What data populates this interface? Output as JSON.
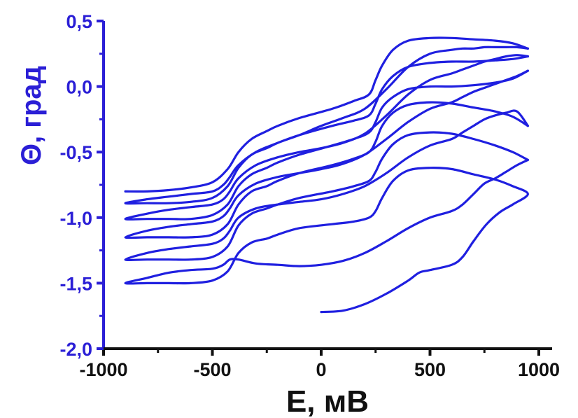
{
  "chart_data": {
    "type": "line",
    "title": "",
    "xlabel": "E, мВ",
    "ylabel": "Θ, град",
    "xlim": [
      -1000,
      1000
    ],
    "ylim": [
      -2.0,
      0.5
    ],
    "xticks": [
      -1000,
      -500,
      0,
      500,
      1000
    ],
    "xtick_labels": [
      "-1000",
      "-500",
      "0",
      "500",
      "1000"
    ],
    "yticks": [
      0.5,
      0.0,
      -0.5,
      -1.0,
      -1.5,
      -2.0
    ],
    "ytick_labels": [
      "0,5",
      "0,0",
      "-0,5",
      "-1,0",
      "-1,5",
      "-2,0"
    ],
    "grid": false,
    "legend": "none",
    "colors": {
      "series": "#1f1fe0",
      "y_axis": "#2b1fd6",
      "x_axis": "#111111"
    },
    "series": [
      {
        "points": [
          [
            0,
            -1.72
          ],
          [
            100,
            -1.71
          ],
          [
            200,
            -1.66
          ],
          [
            300,
            -1.58
          ],
          [
            400,
            -1.48
          ],
          [
            450,
            -1.42
          ],
          [
            500,
            -1.4
          ],
          [
            600,
            -1.36
          ],
          [
            650,
            -1.3
          ],
          [
            700,
            -1.18
          ],
          [
            760,
            -1.05
          ],
          [
            820,
            -0.96
          ],
          [
            880,
            -0.9
          ],
          [
            950,
            -0.82
          ],
          [
            880,
            -0.76
          ],
          [
            800,
            -0.71
          ],
          [
            700,
            -0.67
          ],
          [
            600,
            -0.63
          ],
          [
            500,
            -0.62
          ],
          [
            400,
            -0.64
          ],
          [
            330,
            -0.72
          ],
          [
            280,
            -0.85
          ],
          [
            250,
            -0.95
          ],
          [
            220,
            -1.0
          ],
          [
            150,
            -1.03
          ],
          [
            50,
            -1.05
          ],
          [
            -100,
            -1.08
          ],
          [
            -200,
            -1.13
          ],
          [
            -250,
            -1.16
          ],
          [
            -320,
            -1.19
          ],
          [
            -380,
            -1.27
          ],
          [
            -430,
            -1.41
          ],
          [
            -500,
            -1.48
          ],
          [
            -600,
            -1.5
          ],
          [
            -700,
            -1.5
          ],
          [
            -800,
            -1.5
          ],
          [
            -900,
            -1.5
          ],
          [
            -800,
            -1.46
          ],
          [
            -700,
            -1.42
          ],
          [
            -600,
            -1.4
          ],
          [
            -500,
            -1.39
          ],
          [
            -450,
            -1.36
          ],
          [
            -420,
            -1.32
          ],
          [
            -380,
            -1.32
          ],
          [
            -300,
            -1.35
          ],
          [
            -200,
            -1.36
          ],
          [
            -100,
            -1.37
          ],
          [
            0,
            -1.36
          ],
          [
            100,
            -1.33
          ],
          [
            200,
            -1.27
          ],
          [
            300,
            -1.18
          ],
          [
            400,
            -1.08
          ],
          [
            500,
            -1.0
          ],
          [
            600,
            -0.95
          ],
          [
            650,
            -0.9
          ],
          [
            700,
            -0.82
          ],
          [
            750,
            -0.74
          ],
          [
            800,
            -0.7
          ],
          [
            850,
            -0.65
          ],
          [
            900,
            -0.6
          ],
          [
            950,
            -0.56
          ]
        ]
      },
      {
        "points": [
          [
            950,
            -0.56
          ],
          [
            880,
            -0.5
          ],
          [
            800,
            -0.45
          ],
          [
            700,
            -0.4
          ],
          [
            600,
            -0.36
          ],
          [
            500,
            -0.35
          ],
          [
            400,
            -0.37
          ],
          [
            330,
            -0.44
          ],
          [
            280,
            -0.55
          ],
          [
            250,
            -0.65
          ],
          [
            220,
            -0.72
          ],
          [
            150,
            -0.76
          ],
          [
            50,
            -0.8
          ],
          [
            -100,
            -0.85
          ],
          [
            -200,
            -0.9
          ],
          [
            -250,
            -0.93
          ],
          [
            -320,
            -0.97
          ],
          [
            -380,
            -1.06
          ],
          [
            -430,
            -1.22
          ],
          [
            -500,
            -1.3
          ],
          [
            -600,
            -1.32
          ],
          [
            -700,
            -1.32
          ],
          [
            -800,
            -1.32
          ],
          [
            -900,
            -1.32
          ],
          [
            -800,
            -1.27
          ],
          [
            -700,
            -1.24
          ],
          [
            -600,
            -1.22
          ],
          [
            -500,
            -1.2
          ],
          [
            -450,
            -1.16
          ],
          [
            -420,
            -1.1
          ],
          [
            -380,
            -1.0
          ],
          [
            -300,
            -0.93
          ],
          [
            -200,
            -0.9
          ],
          [
            -100,
            -0.88
          ],
          [
            0,
            -0.86
          ],
          [
            100,
            -0.82
          ],
          [
            200,
            -0.76
          ],
          [
            300,
            -0.66
          ],
          [
            400,
            -0.54
          ],
          [
            500,
            -0.45
          ],
          [
            600,
            -0.4
          ],
          [
            650,
            -0.35
          ],
          [
            700,
            -0.3
          ],
          [
            750,
            -0.25
          ],
          [
            800,
            -0.22
          ],
          [
            850,
            -0.2
          ],
          [
            900,
            -0.19
          ],
          [
            950,
            -0.3
          ]
        ]
      },
      {
        "points": [
          [
            950,
            -0.3
          ],
          [
            880,
            -0.23
          ],
          [
            800,
            -0.19
          ],
          [
            700,
            -0.16
          ],
          [
            600,
            -0.13
          ],
          [
            500,
            -0.12
          ],
          [
            400,
            -0.14
          ],
          [
            330,
            -0.2
          ],
          [
            280,
            -0.3
          ],
          [
            250,
            -0.42
          ],
          [
            220,
            -0.5
          ],
          [
            150,
            -0.55
          ],
          [
            50,
            -0.6
          ],
          [
            -100,
            -0.66
          ],
          [
            -200,
            -0.72
          ],
          [
            -250,
            -0.76
          ],
          [
            -320,
            -0.8
          ],
          [
            -380,
            -0.9
          ],
          [
            -430,
            -1.05
          ],
          [
            -500,
            -1.13
          ],
          [
            -600,
            -1.15
          ],
          [
            -700,
            -1.15
          ],
          [
            -800,
            -1.15
          ],
          [
            -900,
            -1.15
          ],
          [
            -800,
            -1.1
          ],
          [
            -700,
            -1.07
          ],
          [
            -600,
            -1.05
          ],
          [
            -500,
            -1.03
          ],
          [
            -450,
            -0.99
          ],
          [
            -420,
            -0.93
          ],
          [
            -380,
            -0.83
          ],
          [
            -300,
            -0.74
          ],
          [
            -200,
            -0.69
          ],
          [
            -100,
            -0.66
          ],
          [
            0,
            -0.63
          ],
          [
            100,
            -0.59
          ],
          [
            200,
            -0.52
          ],
          [
            300,
            -0.4
          ],
          [
            400,
            -0.27
          ],
          [
            500,
            -0.17
          ],
          [
            600,
            -0.12
          ],
          [
            650,
            -0.08
          ],
          [
            700,
            -0.04
          ],
          [
            750,
            -0.01
          ],
          [
            800,
            0.02
          ],
          [
            850,
            0.05
          ],
          [
            900,
            0.08
          ],
          [
            950,
            0.12
          ]
        ]
      },
      {
        "points": [
          [
            950,
            0.12
          ],
          [
            880,
            0.06
          ],
          [
            800,
            0.03
          ],
          [
            700,
            0.01
          ],
          [
            600,
            0.0
          ],
          [
            500,
            0.0
          ],
          [
            400,
            -0.02
          ],
          [
            330,
            -0.08
          ],
          [
            280,
            -0.16
          ],
          [
            250,
            -0.27
          ],
          [
            220,
            -0.35
          ],
          [
            150,
            -0.4
          ],
          [
            50,
            -0.45
          ],
          [
            -100,
            -0.52
          ],
          [
            -200,
            -0.58
          ],
          [
            -250,
            -0.62
          ],
          [
            -320,
            -0.67
          ],
          [
            -380,
            -0.76
          ],
          [
            -430,
            -0.9
          ],
          [
            -500,
            -0.98
          ],
          [
            -600,
            -1.01
          ],
          [
            -700,
            -1.01
          ],
          [
            -800,
            -1.01
          ],
          [
            -900,
            -1.01
          ],
          [
            -800,
            -0.97
          ],
          [
            -700,
            -0.94
          ],
          [
            -600,
            -0.92
          ],
          [
            -500,
            -0.9
          ],
          [
            -450,
            -0.86
          ],
          [
            -420,
            -0.8
          ],
          [
            -380,
            -0.7
          ],
          [
            -300,
            -0.6
          ],
          [
            -200,
            -0.54
          ],
          [
            -100,
            -0.5
          ],
          [
            0,
            -0.47
          ],
          [
            100,
            -0.43
          ],
          [
            200,
            -0.36
          ],
          [
            300,
            -0.22
          ],
          [
            400,
            -0.06
          ],
          [
            500,
            0.05
          ],
          [
            600,
            0.1
          ],
          [
            650,
            0.13
          ],
          [
            700,
            0.16
          ],
          [
            750,
            0.19
          ],
          [
            800,
            0.21
          ],
          [
            850,
            0.23
          ],
          [
            900,
            0.24
          ],
          [
            950,
            0.23
          ]
        ]
      },
      {
        "points": [
          [
            950,
            0.23
          ],
          [
            880,
            0.21
          ],
          [
            800,
            0.2
          ],
          [
            700,
            0.19
          ],
          [
            600,
            0.19
          ],
          [
            500,
            0.18
          ],
          [
            400,
            0.15
          ],
          [
            330,
            0.08
          ],
          [
            280,
            -0.02
          ],
          [
            250,
            -0.13
          ],
          [
            220,
            -0.22
          ],
          [
            150,
            -0.26
          ],
          [
            50,
            -0.3
          ],
          [
            -100,
            -0.37
          ],
          [
            -200,
            -0.43
          ],
          [
            -250,
            -0.47
          ],
          [
            -320,
            -0.52
          ],
          [
            -380,
            -0.62
          ],
          [
            -430,
            -0.76
          ],
          [
            -500,
            -0.85
          ],
          [
            -600,
            -0.88
          ],
          [
            -700,
            -0.89
          ],
          [
            -800,
            -0.89
          ],
          [
            -900,
            -0.89
          ],
          [
            -800,
            -0.86
          ],
          [
            -700,
            -0.84
          ],
          [
            -600,
            -0.82
          ],
          [
            -500,
            -0.8
          ],
          [
            -450,
            -0.75
          ],
          [
            -420,
            -0.69
          ],
          [
            -380,
            -0.6
          ],
          [
            -300,
            -0.5
          ],
          [
            -200,
            -0.43
          ],
          [
            -100,
            -0.37
          ],
          [
            0,
            -0.3
          ],
          [
            100,
            -0.24
          ],
          [
            200,
            -0.17
          ],
          [
            300,
            -0.02
          ],
          [
            400,
            0.15
          ],
          [
            500,
            0.25
          ],
          [
            600,
            0.28
          ],
          [
            650,
            0.29
          ],
          [
            700,
            0.29
          ],
          [
            750,
            0.3
          ],
          [
            800,
            0.3
          ],
          [
            850,
            0.3
          ],
          [
            900,
            0.3
          ],
          [
            950,
            0.29
          ]
        ]
      },
      {
        "points": [
          [
            950,
            0.29
          ],
          [
            880,
            0.33
          ],
          [
            800,
            0.35
          ],
          [
            700,
            0.36
          ],
          [
            600,
            0.37
          ],
          [
            500,
            0.37
          ],
          [
            400,
            0.35
          ],
          [
            330,
            0.28
          ],
          [
            280,
            0.16
          ],
          [
            250,
            0.05
          ],
          [
            220,
            -0.06
          ],
          [
            150,
            -0.11
          ],
          [
            50,
            -0.17
          ],
          [
            -100,
            -0.24
          ],
          [
            -200,
            -0.3
          ],
          [
            -250,
            -0.34
          ],
          [
            -320,
            -0.4
          ],
          [
            -380,
            -0.5
          ],
          [
            -430,
            -0.63
          ],
          [
            -500,
            -0.73
          ],
          [
            -600,
            -0.77
          ],
          [
            -700,
            -0.79
          ],
          [
            -800,
            -0.8
          ],
          [
            -900,
            -0.8
          ]
        ]
      }
    ]
  }
}
